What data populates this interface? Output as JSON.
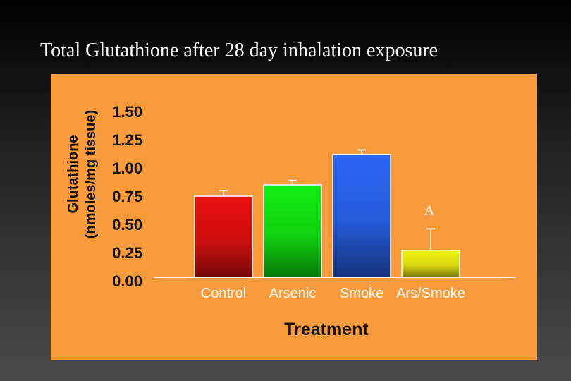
{
  "slide": {
    "title": "Total Glutathione after 28 day inhalation exposure"
  },
  "chart_data": {
    "type": "bar",
    "xlabel": "Treatment",
    "ylabel_line1": "Glutathione",
    "ylabel_line2": "(nmoles/mg tissue)",
    "ylim": [
      0,
      1.5
    ],
    "yticks": [
      "0.00",
      "0.25",
      "0.50",
      "0.75",
      "1.00",
      "1.25",
      "1.50"
    ],
    "categories": [
      "Control",
      "Arsenic",
      "Smoke",
      "Ars/Smoke"
    ],
    "values": [
      0.75,
      0.85,
      1.12,
      0.27
    ],
    "error": [
      0.05,
      0.04,
      0.04,
      0.19
    ],
    "colors": [
      "#e81010",
      "#12ee12",
      "#2a66f6",
      "#f4f412"
    ],
    "annotations": [
      {
        "category": "Ars/Smoke",
        "text": "A"
      }
    ],
    "grid": false,
    "legend": "none"
  }
}
